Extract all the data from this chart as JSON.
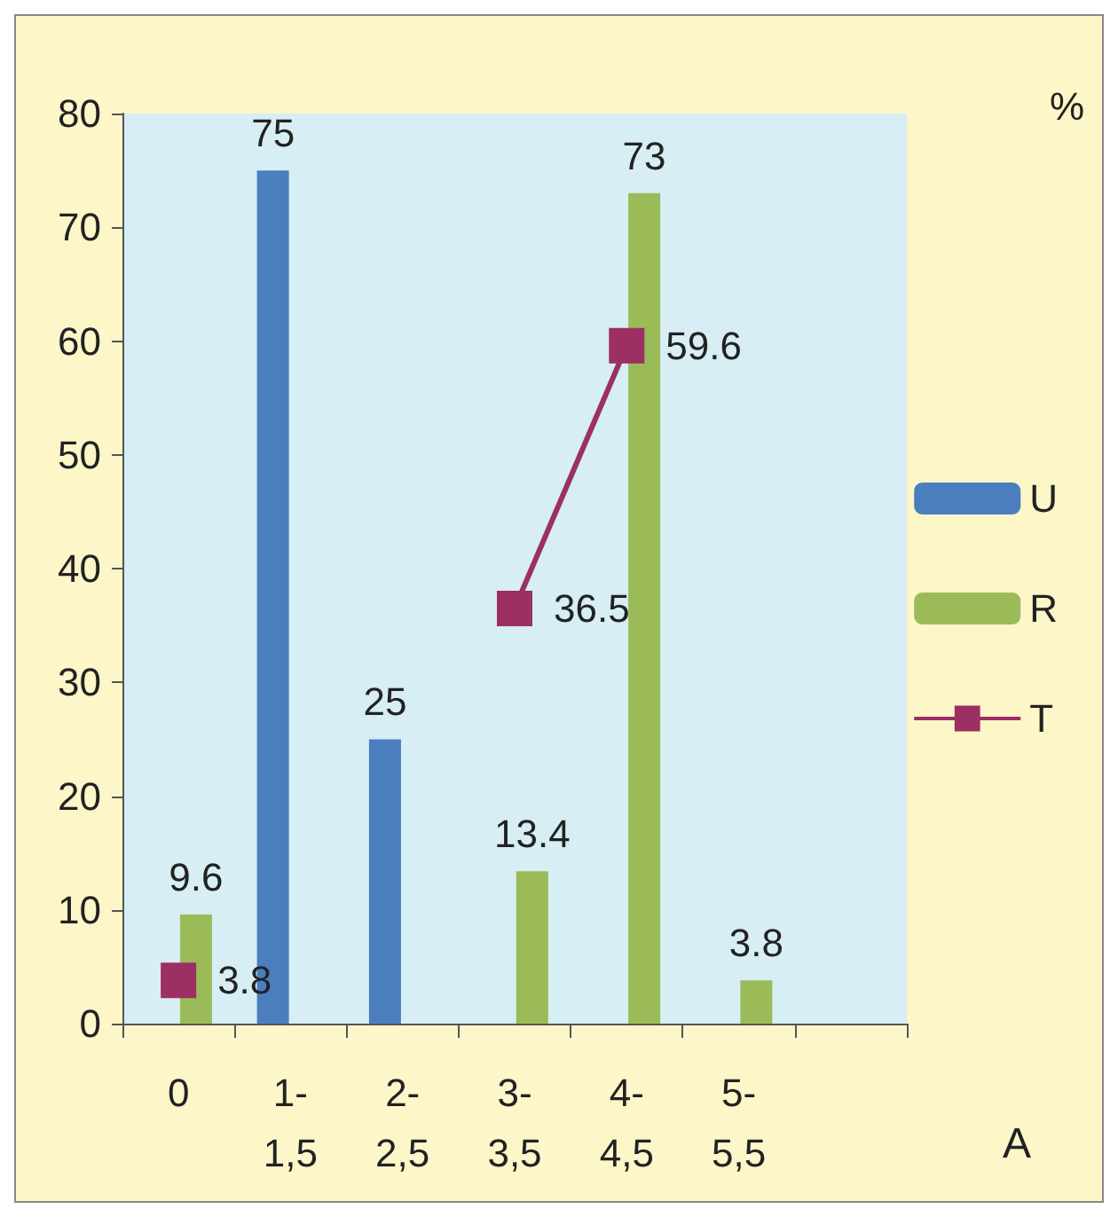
{
  "chart_data": {
    "type": "bar",
    "xlabel": "A",
    "ylabel": "%",
    "categories": [
      "0",
      "1-\n1,5",
      "2-\n2,5",
      "3-\n3,5",
      "4-\n4,5",
      "5-\n5,5",
      null
    ],
    "series": [
      {
        "name": "U",
        "color": "#4a7ebf",
        "values": [
          null,
          75,
          25,
          null,
          null,
          null,
          null
        ]
      },
      {
        "name": "R",
        "color": "#9bbb59",
        "values": [
          9.6,
          null,
          null,
          13.4,
          73,
          3.8,
          null
        ]
      },
      {
        "name": "T",
        "type": "line",
        "color": "#9c2f63",
        "values": [
          3.8,
          null,
          null,
          36.5,
          59.6,
          null,
          null
        ]
      }
    ],
    "ylim": [
      0,
      80
    ],
    "yticks": [
      0,
      10,
      20,
      30,
      40,
      50,
      60,
      70,
      80
    ],
    "data_labels": true,
    "grid": false,
    "legend": "right",
    "marker": "square",
    "line_style": "solid"
  }
}
